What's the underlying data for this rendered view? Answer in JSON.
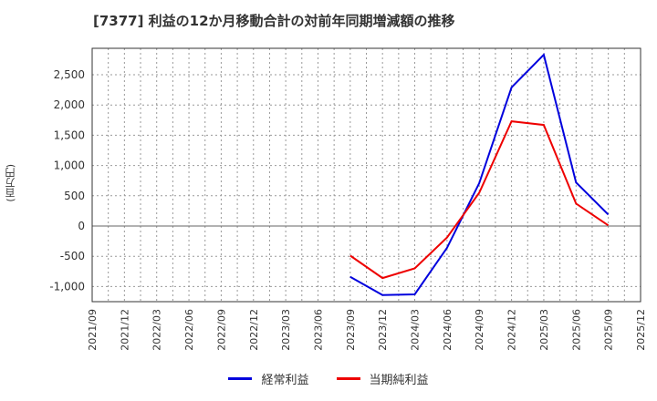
{
  "title": "[7377]  利益の12か月移動合計の対前年同期増減額の推移",
  "y_axis_label": "(百万円)",
  "legend": [
    {
      "label": "経常利益",
      "color": "#0000dd"
    },
    {
      "label": "当期純利益",
      "color": "#ee0000"
    }
  ],
  "chart_data": {
    "type": "line",
    "title": "[7377]  利益の12か月移動合計の対前年同期増減額の推移",
    "xlabel": "",
    "ylabel": "(百万円)",
    "ylim": [
      -1250,
      2950
    ],
    "yticks": [
      -1000,
      -500,
      0,
      500,
      1000,
      1500,
      2000,
      2500
    ],
    "ytick_labels": [
      "-1,000",
      "-500",
      "0",
      "500",
      "1,000",
      "1,500",
      "2,000",
      "2,500"
    ],
    "categories": [
      "2021/09",
      "2021/12",
      "2022/03",
      "2022/06",
      "2022/09",
      "2022/12",
      "2023/03",
      "2023/06",
      "2023/09",
      "2023/12",
      "2024/03",
      "2024/06",
      "2024/09",
      "2024/12",
      "2025/03",
      "2025/06",
      "2025/09",
      "2025/12"
    ],
    "grid": true,
    "legend_position": "bottom",
    "series": [
      {
        "name": "経常利益",
        "color": "#0000dd",
        "values": [
          null,
          null,
          null,
          null,
          null,
          null,
          null,
          null,
          -840,
          -1140,
          -1130,
          -360,
          710,
          2290,
          2830,
          720,
          190,
          null
        ]
      },
      {
        "name": "当期純利益",
        "color": "#ee0000",
        "values": [
          null,
          null,
          null,
          null,
          null,
          null,
          null,
          null,
          -490,
          -860,
          -700,
          -190,
          550,
          1730,
          1670,
          370,
          10,
          null
        ]
      }
    ]
  }
}
